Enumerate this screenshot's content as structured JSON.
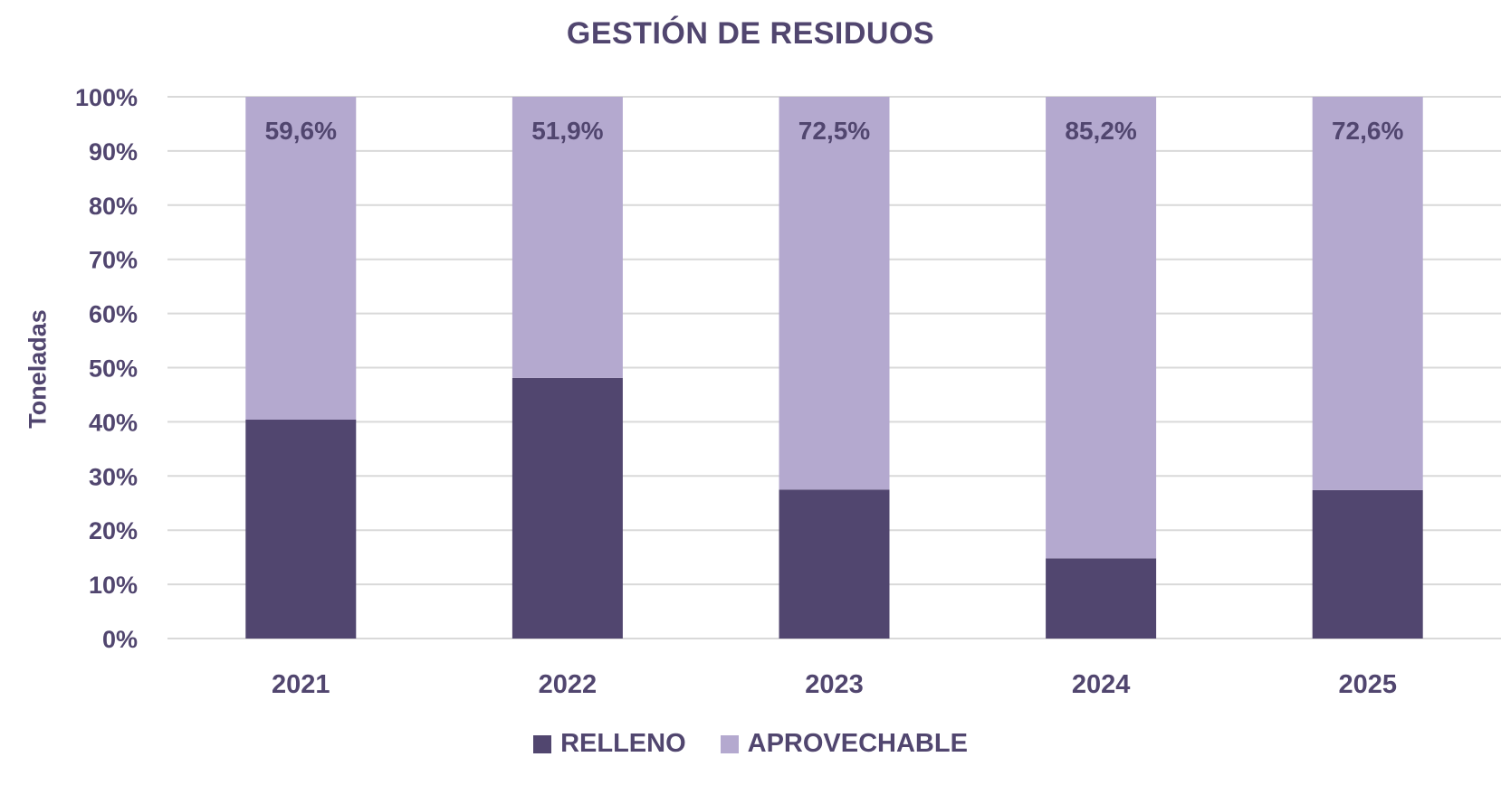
{
  "chart_data": {
    "type": "bar",
    "stacked": true,
    "title": "GESTIÓN DE RESIDUOS",
    "ylabel": "Toneladas",
    "xlabel": "",
    "categories": [
      "2021",
      "2022",
      "2023",
      "2024",
      "2025"
    ],
    "y_ticks": [
      "0%",
      "10%",
      "20%",
      "30%",
      "40%",
      "50%",
      "60%",
      "70%",
      "80%",
      "90%",
      "100%"
    ],
    "ylim": [
      0,
      100
    ],
    "grid": true,
    "legend_position": "bottom",
    "series": [
      {
        "name": "RELLENO",
        "color": "#51466f",
        "values": [
          40.4,
          48.1,
          27.5,
          14.8,
          27.4
        ]
      },
      {
        "name": "APROVECHABLE",
        "color": "#b4a9cf",
        "values": [
          59.6,
          51.9,
          72.5,
          85.2,
          72.6
        ],
        "labels": [
          "59,6%",
          "51,9%",
          "72,5%",
          "85,2%",
          "72,6%"
        ]
      }
    ]
  }
}
